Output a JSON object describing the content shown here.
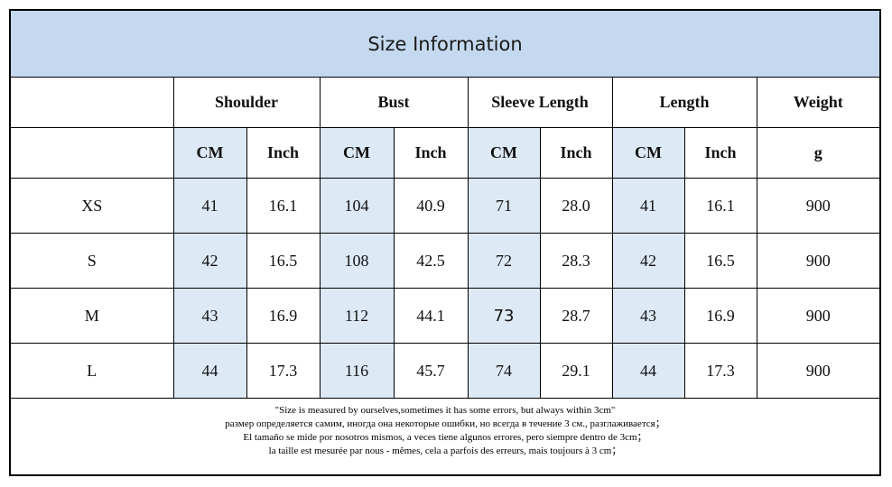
{
  "title": "Size Information",
  "groups": [
    {
      "label": "Shoulder"
    },
    {
      "label": "Bust"
    },
    {
      "label": "Sleeve Length"
    },
    {
      "label": "Length"
    },
    {
      "label": "Weight"
    }
  ],
  "units": [
    "CM",
    "Inch",
    "CM",
    "Inch",
    "CM",
    "Inch",
    "CM",
    "Inch",
    "g"
  ],
  "rows": [
    {
      "size": "XS",
      "values": [
        "41",
        "16.1",
        "104",
        "40.9",
        "71",
        "28.0",
        "41",
        "16.1",
        "900"
      ]
    },
    {
      "size": "S",
      "values": [
        "42",
        "16.5",
        "108",
        "42.5",
        "72",
        "28.3",
        "42",
        "16.5",
        "900"
      ]
    },
    {
      "size": "M",
      "values": [
        "43",
        "16.9",
        "112",
        "44.1",
        "73",
        "28.7",
        "43",
        "16.9",
        "900"
      ]
    },
    {
      "size": "L",
      "values": [
        "44",
        "17.3",
        "116",
        "45.7",
        "74",
        "29.1",
        "44",
        "17.3",
        "900"
      ]
    }
  ],
  "notes": [
    "\"Size is measured by ourselves,sometimes it has some errors, but always within 3cm\"",
    "размер определяется самим, иногда она некоторые ошибки, но всегда в течение 3 см., разглаживается；",
    "El tamaño se mide por nosotros mismos, a veces tiene algunos errores, pero siempre dentro de 3cm；",
    "la taille est mesurée par nous - mêmes, cela a parfois des erreurs, mais toujours à 3 cm；"
  ],
  "colors": {
    "title_bg": "#c4d9ef",
    "cm_column_bg": "#dde9f5",
    "border": "#000000"
  }
}
